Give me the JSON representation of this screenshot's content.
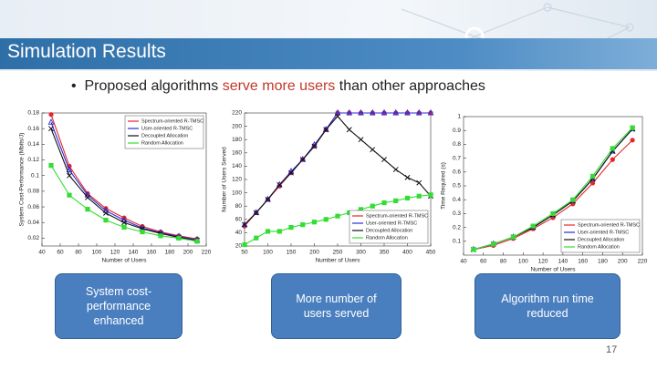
{
  "slide": {
    "title": "Simulation Results",
    "bullet": [
      "Proposed algorithms",
      "serve more users",
      "than other approaches"
    ],
    "boxes": [
      "System cost-performance enhanced",
      "More number of users served",
      "Algorithm run time reduced"
    ],
    "page_number": "17"
  },
  "chart_data": [
    {
      "type": "line",
      "xlabel": "Number of Users",
      "ylabel": "System Cost-Performance (Mbits/J)",
      "x": [
        50,
        70,
        90,
        110,
        130,
        150,
        170,
        190,
        210
      ],
      "xlim": [
        40,
        220
      ],
      "xticks": [
        40,
        60,
        80,
        100,
        120,
        140,
        160,
        180,
        200,
        220
      ],
      "ylim": [
        0.01,
        0.18
      ],
      "yticks": [
        0.02,
        0.04,
        0.06,
        0.08,
        0.1,
        0.12,
        0.14,
        0.16,
        0.18
      ],
      "legend": "upper right",
      "series": [
        {
          "name": "Spectrum-oriented R-TMSC",
          "color": "#e8262a",
          "marker": "circle",
          "values": [
            0.178,
            0.112,
            0.077,
            0.058,
            0.046,
            0.035,
            0.028,
            0.023,
            0.019
          ]
        },
        {
          "name": "User-oriented R-TMSC",
          "color": "#2a2ad8",
          "marker": "triangle",
          "values": [
            0.168,
            0.107,
            0.075,
            0.055,
            0.043,
            0.033,
            0.027,
            0.022,
            0.018
          ]
        },
        {
          "name": "Decoupled Allocation",
          "color": "#111111",
          "marker": "x",
          "values": [
            0.16,
            0.1,
            0.072,
            0.052,
            0.04,
            0.032,
            0.026,
            0.021,
            0.017
          ]
        },
        {
          "name": "Random Allocation",
          "color": "#33dd33",
          "marker": "square",
          "values": [
            0.113,
            0.075,
            0.057,
            0.043,
            0.034,
            0.028,
            0.023,
            0.02,
            0.016
          ]
        }
      ]
    },
    {
      "type": "line",
      "xlabel": "Number of Users",
      "ylabel": "Number of Users Served",
      "x": [
        50,
        75,
        100,
        125,
        150,
        175,
        200,
        225,
        250,
        275,
        300,
        325,
        350,
        375,
        400,
        425,
        450
      ],
      "xlim": [
        50,
        450
      ],
      "xticks": [
        50,
        100,
        150,
        200,
        250,
        300,
        350,
        400,
        450
      ],
      "ylim": [
        20,
        220
      ],
      "yticks": [
        20,
        40,
        60,
        80,
        100,
        120,
        140,
        160,
        180,
        200,
        220
      ],
      "legend": "lower right",
      "series": [
        {
          "name": "Spectrum-oriented R-TMSC",
          "color": "#e8262a",
          "marker": "circle",
          "values": [
            50,
            70,
            90,
            110,
            130,
            150,
            170,
            195,
            220,
            220,
            220,
            220,
            220,
            220,
            220,
            220,
            220
          ]
        },
        {
          "name": "User-oriented R-TMSC",
          "color": "#2a2ad8",
          "marker": "triangle",
          "values": [
            52,
            70,
            90,
            112,
            132,
            150,
            172,
            195,
            220,
            220,
            220,
            220,
            220,
            220,
            220,
            220,
            220
          ]
        },
        {
          "name": "Decoupled Allocation",
          "color": "#111111",
          "marker": "x",
          "values": [
            52,
            70,
            90,
            112,
            130,
            150,
            170,
            195,
            215,
            195,
            180,
            165,
            150,
            135,
            123,
            115,
            95
          ]
        },
        {
          "name": "Random Allocation",
          "color": "#33dd33",
          "marker": "square",
          "values": [
            22,
            32,
            42,
            42,
            48,
            52,
            56,
            60,
            65,
            70,
            75,
            80,
            85,
            88,
            92,
            95,
            97
          ]
        }
      ]
    },
    {
      "type": "line",
      "xlabel": "Number of Users",
      "ylabel": "Time Required (s)",
      "x": [
        50,
        70,
        90,
        110,
        130,
        150,
        170,
        190,
        210
      ],
      "xlim": [
        40,
        220
      ],
      "xticks": [
        40,
        60,
        80,
        100,
        120,
        140,
        160,
        180,
        200,
        220
      ],
      "ylim": [
        0,
        1
      ],
      "yticks": [
        0.1,
        0.2,
        0.3,
        0.4,
        0.5,
        0.6,
        0.7,
        0.8,
        0.9,
        1
      ],
      "legend": "lower right",
      "series": [
        {
          "name": "Spectrum-oriented R-TMSC",
          "color": "#e8262a",
          "marker": "circle",
          "values": [
            0.04,
            0.07,
            0.12,
            0.19,
            0.27,
            0.37,
            0.52,
            0.69,
            0.83
          ]
        },
        {
          "name": "User-oriented R-TMSC",
          "color": "#2a2ad8",
          "marker": "triangle",
          "values": [
            0.04,
            0.08,
            0.13,
            0.2,
            0.29,
            0.39,
            0.55,
            0.75,
            0.91
          ]
        },
        {
          "name": "Decoupled Allocation",
          "color": "#111111",
          "marker": "x",
          "values": [
            0.04,
            0.08,
            0.13,
            0.2,
            0.29,
            0.39,
            0.55,
            0.75,
            0.91
          ]
        },
        {
          "name": "Random Allocation",
          "color": "#33dd33",
          "marker": "square",
          "values": [
            0.04,
            0.08,
            0.13,
            0.21,
            0.3,
            0.4,
            0.57,
            0.77,
            0.92
          ]
        }
      ]
    }
  ]
}
